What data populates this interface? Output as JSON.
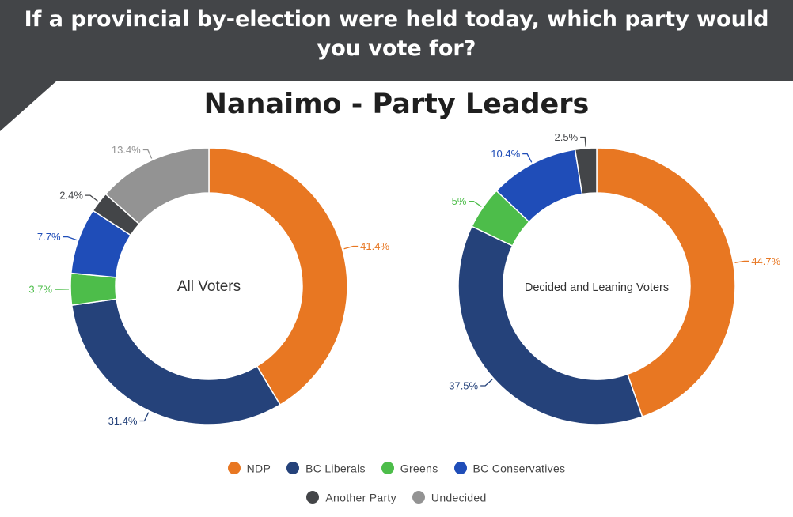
{
  "header": {
    "question": "If a provincial by-election were held today, which party would you vote for?"
  },
  "title": "Nanaimo - Party Leaders",
  "colors": {
    "NDP": "#e87722",
    "BC Liberals": "#25427a",
    "Greens": "#4dbd4a",
    "BC Conservatives": "#1f4db8",
    "Another Party": "#434548",
    "Undecided": "#939393"
  },
  "legend": [
    "NDP",
    "BC Liberals",
    "Greens",
    "BC Conservatives",
    "Another Party",
    "Undecided"
  ],
  "chart_data": [
    {
      "type": "pie",
      "center_label": "All Voters",
      "slices": [
        {
          "name": "NDP",
          "value": 41.4,
          "label": "41.4%"
        },
        {
          "name": "BC Liberals",
          "value": 31.4,
          "label": "31.4%"
        },
        {
          "name": "Greens",
          "value": 3.7,
          "label": "3.7%"
        },
        {
          "name": "BC Conservatives",
          "value": 7.7,
          "label": "7.7%"
        },
        {
          "name": "Another Party",
          "value": 2.4,
          "label": "2.4%"
        },
        {
          "name": "Undecided",
          "value": 13.4,
          "label": "13.4%"
        }
      ]
    },
    {
      "type": "pie",
      "center_label": "Decided and Leaning Voters",
      "slices": [
        {
          "name": "NDP",
          "value": 44.7,
          "label": "44.7%"
        },
        {
          "name": "BC Liberals",
          "value": 37.5,
          "label": "37.5%"
        },
        {
          "name": "Greens",
          "value": 5,
          "label": "5%"
        },
        {
          "name": "BC Conservatives",
          "value": 10.4,
          "label": "10.4%"
        },
        {
          "name": "Another Party",
          "value": 2.5,
          "label": "2.5%"
        }
      ]
    }
  ]
}
